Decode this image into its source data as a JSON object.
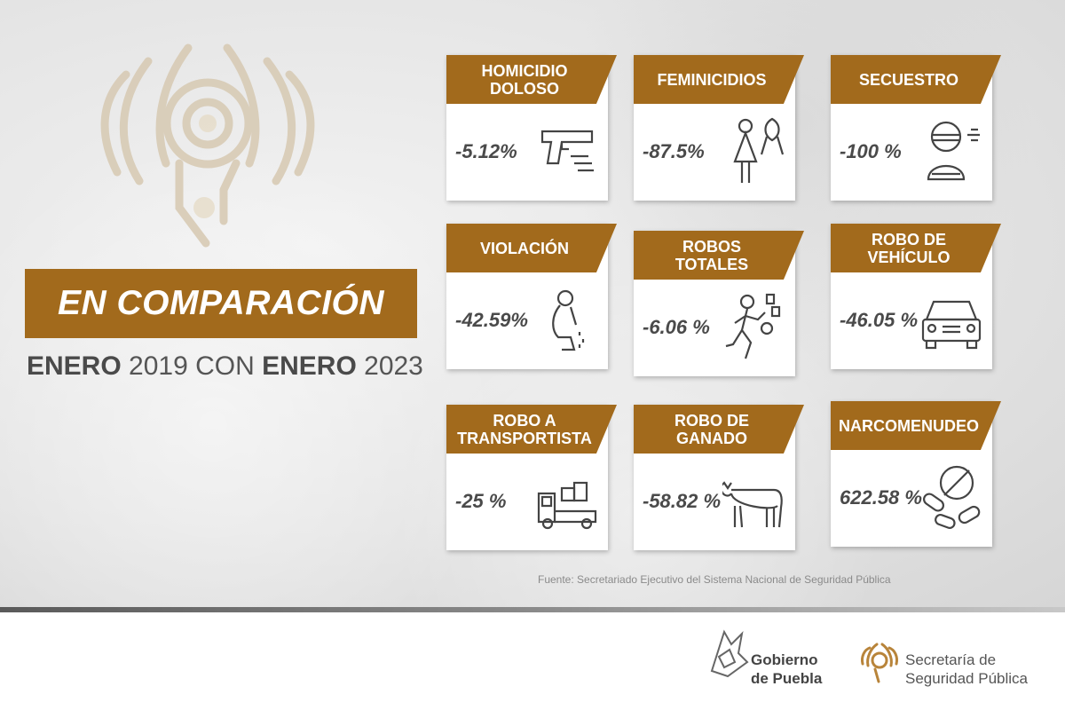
{
  "header": {
    "title": "EN COMPARACIÓN",
    "subtitle": {
      "part1": "ENERO",
      "part2": " 2019 CON ",
      "part3": "ENERO",
      "part4": " 2023"
    }
  },
  "cards": [
    {
      "label": "HOMICIDIO\nDOLOSO",
      "value": "-5.12%",
      "icon": "pistol-icon"
    },
    {
      "label": "FEMINICIDIOS",
      "value": "-87.5%",
      "icon": "woman-ribbon-icon"
    },
    {
      "label": "SECUESTRO",
      "value": "-100 %",
      "icon": "kidnapped-person-icon"
    },
    {
      "label": "VIOLACIÓN",
      "value": "-42.59%",
      "icon": "crying-person-icon"
    },
    {
      "label": "ROBOS\nTOTALES",
      "value": "-6.06 %",
      "icon": "thief-running-icon"
    },
    {
      "label": "ROBO DE\nVEHÍCULO",
      "value": "-46.05 %",
      "icon": "car-icon"
    },
    {
      "label": "ROBO A\nTRANSPORTISTA",
      "value": "-25 %",
      "icon": "truck-icon"
    },
    {
      "label": "ROBO DE\nGANADO",
      "value": "-58.82 %",
      "icon": "cow-icon"
    },
    {
      "label": "NARCOMENUDEO",
      "value": "622.58 %",
      "icon": "pills-icon"
    }
  ],
  "source": "Fuente: Secretariado Ejecutivo del  Sistema Nacional de Seguridad Pública",
  "footer": {
    "logo1_text": "Gobierno\nde Puebla",
    "logo2_text": "Secretaría de\nSeguridad Pública"
  },
  "colors": {
    "accent": "#a26a1c",
    "text_dark": "#4a4a4a"
  }
}
